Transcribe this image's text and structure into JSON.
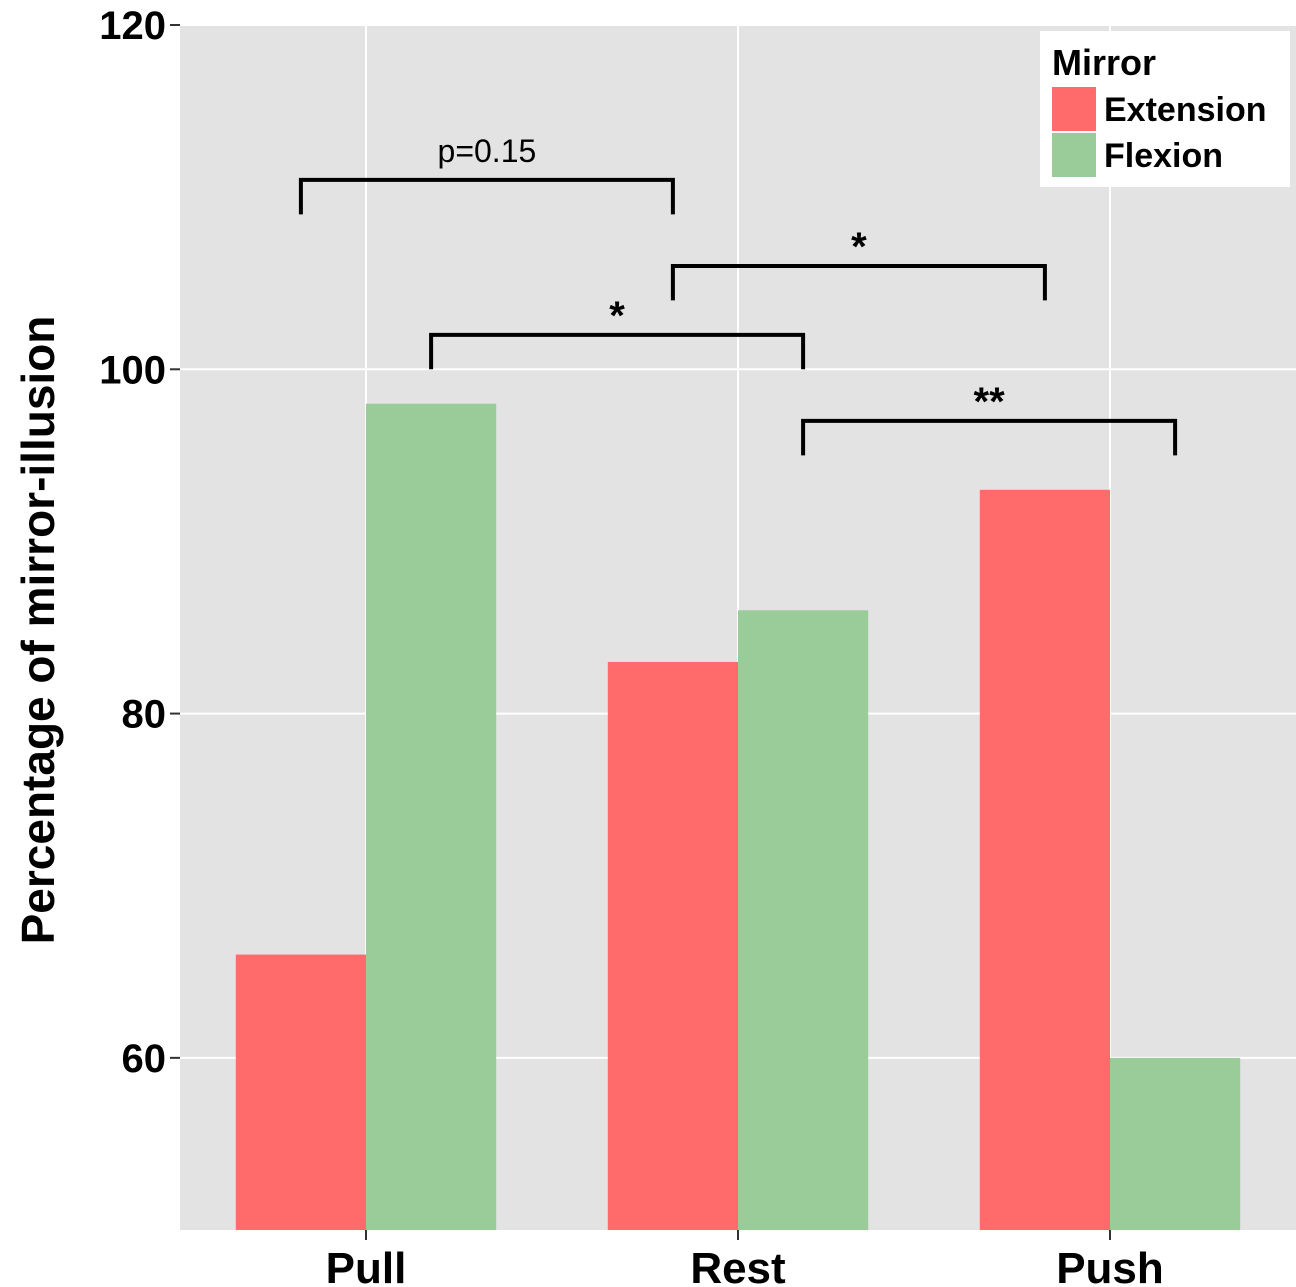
{
  "chart_data": {
    "type": "bar",
    "categories": [
      "Pull",
      "Rest",
      "Push"
    ],
    "series": [
      {
        "name": "Extension",
        "color": "#ff6b6b",
        "values": [
          66,
          83,
          93
        ]
      },
      {
        "name": "Flexion",
        "color": "#99cc99",
        "values": [
          98,
          86,
          60
        ]
      }
    ],
    "ylabel": "Percentage of mirror-illusion",
    "xlabel": "",
    "ylim": [
      50,
      120
    ],
    "yticks": [
      60,
      80,
      100,
      120
    ],
    "grid": true,
    "legend": {
      "title": "Mirror",
      "placement": "top-right"
    },
    "annotations": [
      {
        "label": "p=0.15",
        "from": {
          "category": "Pull",
          "series": "Extension"
        },
        "to": {
          "category": "Rest",
          "series": "Extension"
        },
        "y": 111,
        "tick_depth": 2,
        "style": "normal"
      },
      {
        "label": "*",
        "from": {
          "category": "Rest",
          "series": "Extension"
        },
        "to": {
          "category": "Push",
          "series": "Extension"
        },
        "y": 106,
        "tick_depth": 2,
        "style": "bold"
      },
      {
        "label": "*",
        "from": {
          "category": "Pull",
          "series": "Flexion"
        },
        "to": {
          "category": "Rest",
          "series": "Flexion"
        },
        "y": 102,
        "tick_depth": 2,
        "style": "bold"
      },
      {
        "label": "**",
        "from": {
          "category": "Rest",
          "series": "Flexion"
        },
        "to": {
          "category": "Push",
          "series": "Flexion"
        },
        "y": 97,
        "tick_depth": 2,
        "style": "bold"
      }
    ]
  }
}
